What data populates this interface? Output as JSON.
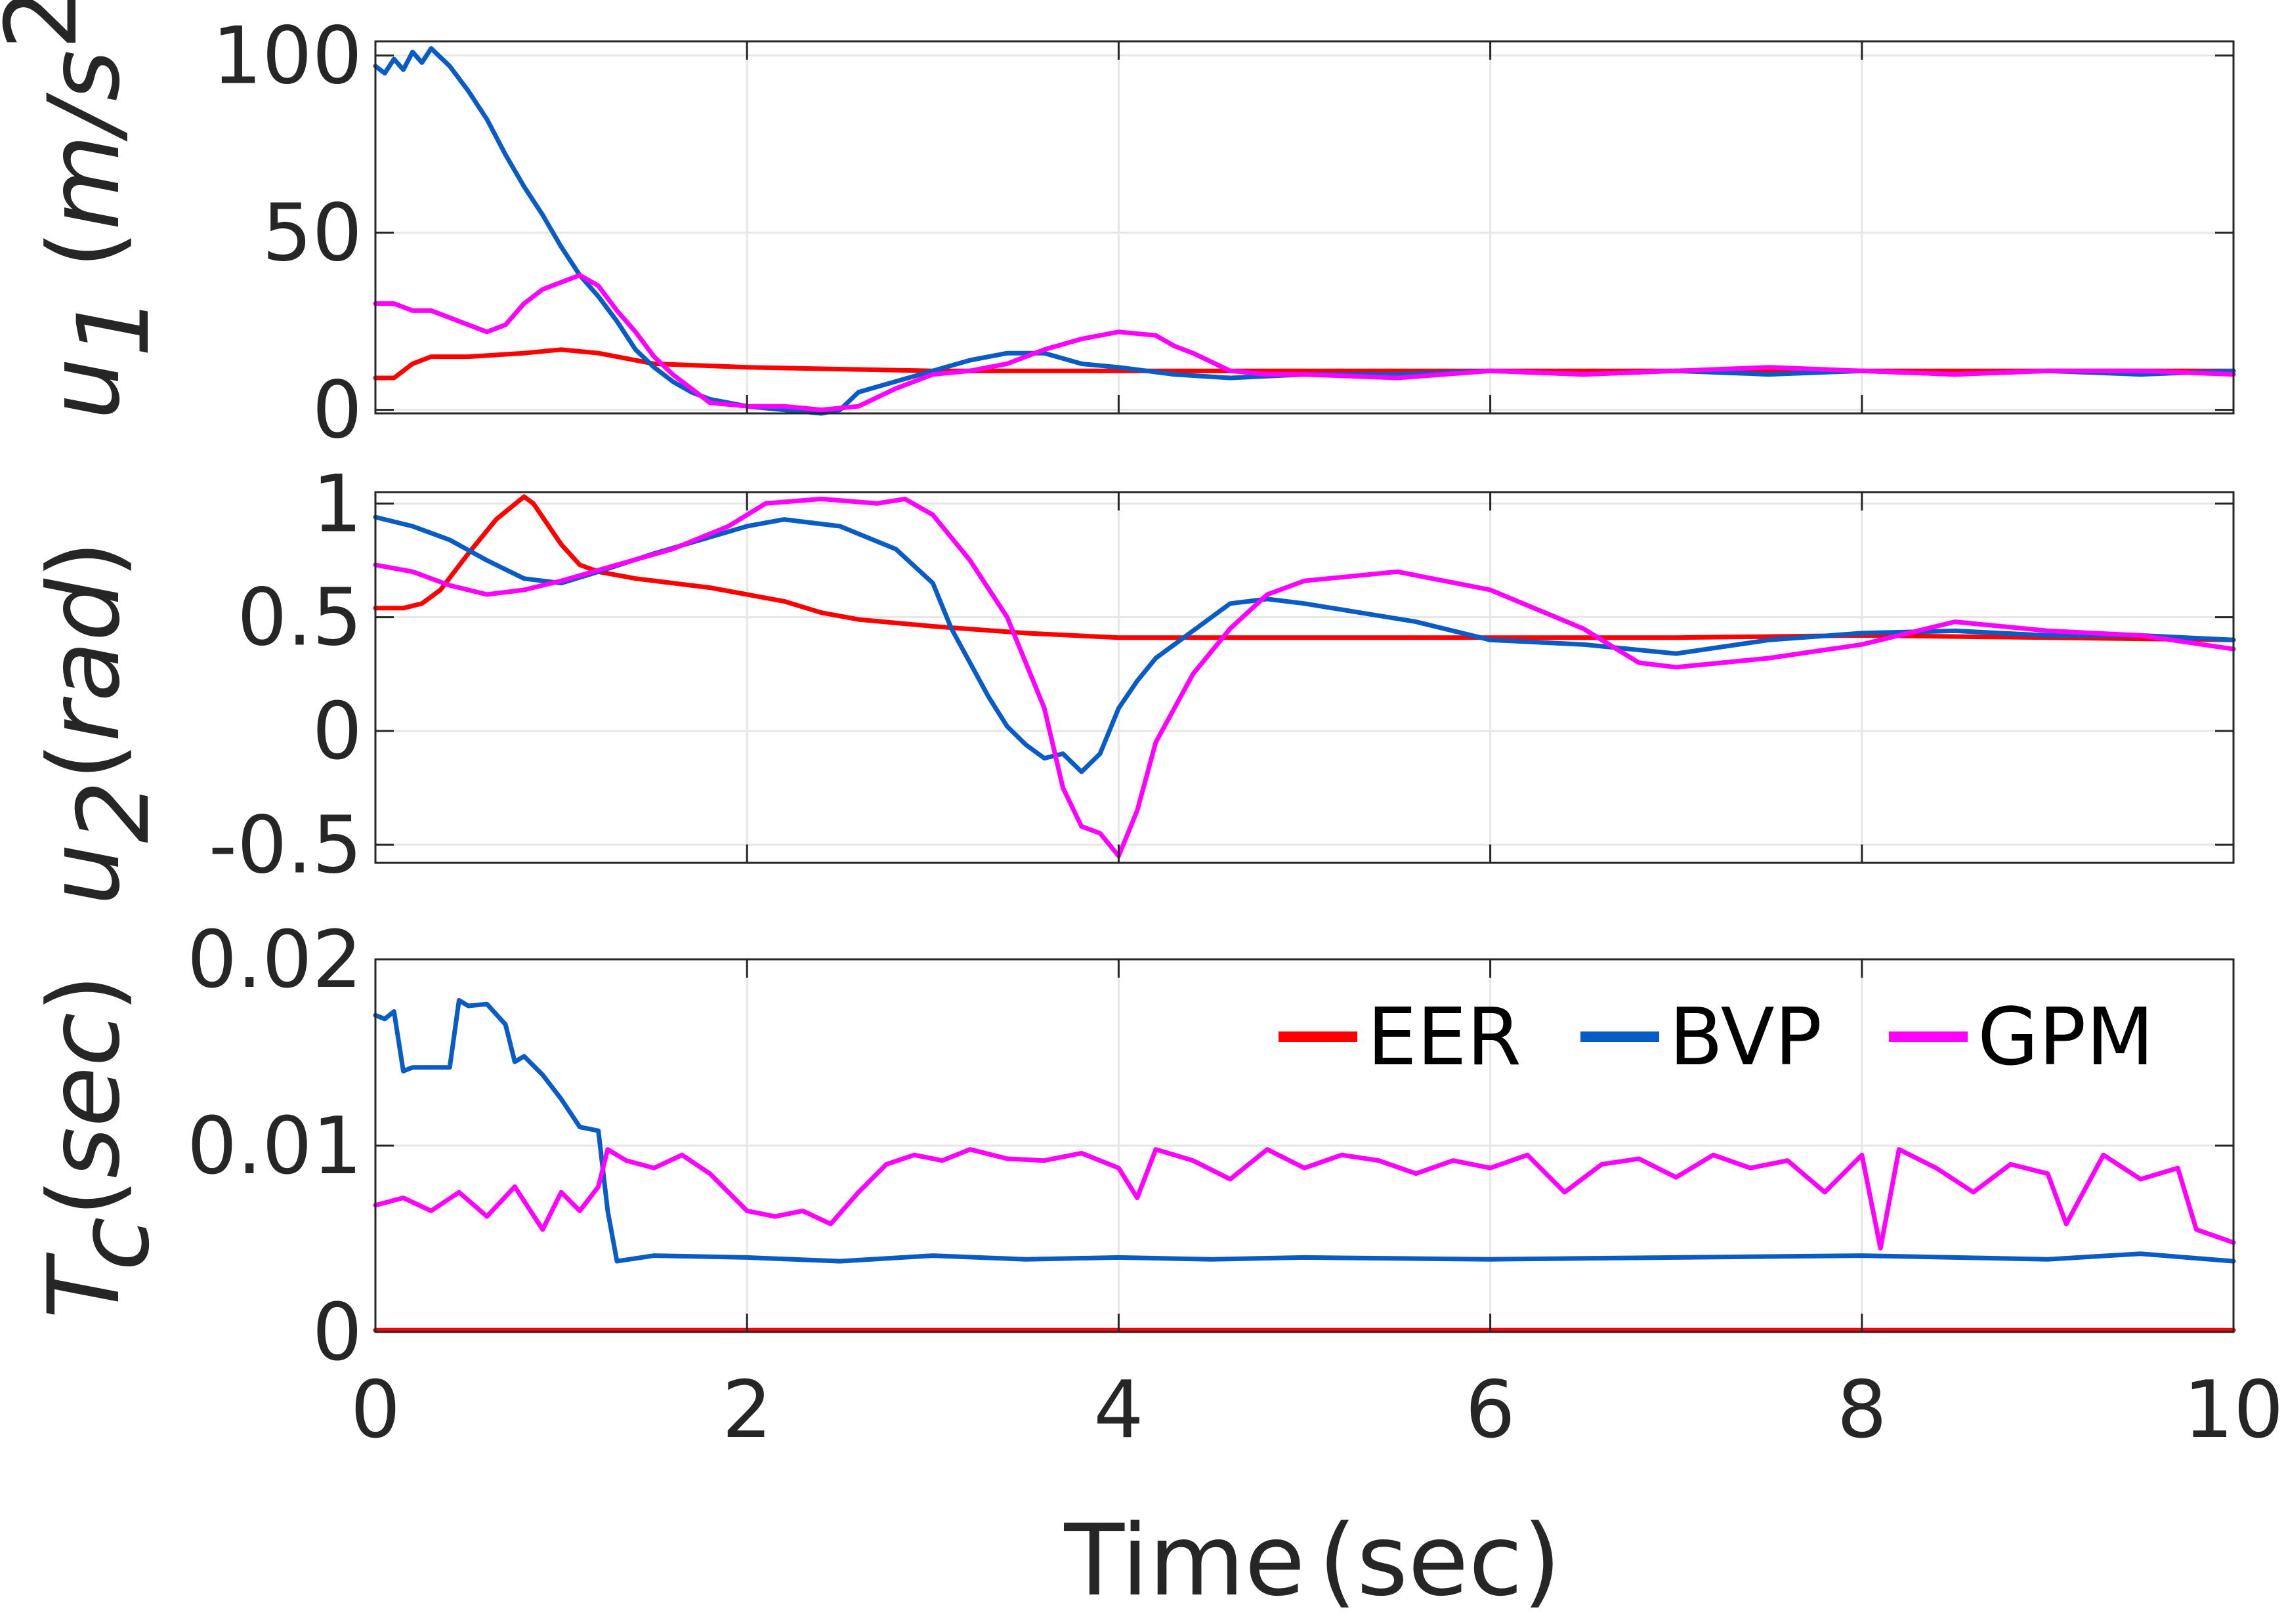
{
  "chart_data": [
    {
      "type": "line",
      "panel": "u1",
      "ylabel_parts": {
        "sym": "u",
        "sub": "1",
        "unit_open": "(",
        "unit_num": "m/s",
        "unit_sup": "2",
        "unit_close": ")"
      },
      "xlim": [
        0,
        10
      ],
      "ylim": [
        -1,
        104
      ],
      "yticks": [
        0,
        50,
        100
      ],
      "ytick_labels": [
        "0",
        "50",
        "100"
      ],
      "grid": true,
      "series": [
        {
          "name": "EER",
          "color": "#ff0000",
          "x": [
            0,
            0.1,
            0.2,
            0.3,
            0.5,
            0.8,
            1.0,
            1.2,
            1.5,
            2.0,
            3.0,
            4.0,
            5.0,
            6.0,
            8.0,
            10.0
          ],
          "y": [
            9,
            9,
            13,
            15,
            15,
            16,
            17,
            16,
            13,
            12,
            11,
            11,
            11,
            11,
            11,
            11
          ]
        },
        {
          "name": "BVP",
          "color": "#0a5cc5",
          "x": [
            0,
            0.05,
            0.1,
            0.15,
            0.2,
            0.25,
            0.3,
            0.4,
            0.5,
            0.6,
            0.7,
            0.8,
            0.9,
            1.0,
            1.1,
            1.2,
            1.3,
            1.4,
            1.5,
            1.6,
            1.7,
            1.8,
            2.0,
            2.2,
            2.4,
            2.5,
            2.6,
            2.8,
            3.0,
            3.2,
            3.4,
            3.6,
            3.8,
            4.0,
            4.3,
            4.6,
            5.0,
            5.5,
            6.0,
            6.5,
            7.0,
            7.5,
            8.0,
            8.5,
            9.0,
            9.5,
            10.0
          ],
          "y": [
            97,
            95,
            99,
            96,
            101,
            98,
            102,
            97,
            90,
            82,
            72,
            63,
            55,
            46,
            38,
            32,
            25,
            17,
            12,
            8,
            5,
            3,
            1,
            0,
            -1,
            0,
            5,
            8,
            11,
            14,
            16,
            16,
            13,
            12,
            10,
            9,
            10,
            10,
            11,
            10,
            11,
            10,
            11,
            10,
            11,
            10,
            11
          ]
        },
        {
          "name": "GPM",
          "color": "#ff00ff",
          "x": [
            0,
            0.1,
            0.2,
            0.3,
            0.4,
            0.5,
            0.6,
            0.7,
            0.8,
            0.9,
            1.0,
            1.1,
            1.2,
            1.3,
            1.4,
            1.5,
            1.6,
            1.7,
            1.8,
            2.0,
            2.2,
            2.4,
            2.6,
            2.8,
            3.0,
            3.2,
            3.4,
            3.6,
            3.8,
            4.0,
            4.2,
            4.3,
            4.4,
            4.6,
            4.8,
            5.0,
            5.5,
            6.0,
            6.5,
            7.0,
            7.5,
            8.0,
            8.5,
            9.0,
            9.5,
            10.0
          ],
          "y": [
            30,
            30,
            28,
            28,
            26,
            24,
            22,
            24,
            30,
            34,
            36,
            38,
            35,
            28,
            22,
            15,
            10,
            6,
            2,
            1,
            1,
            0,
            1,
            6,
            10,
            11,
            13,
            17,
            20,
            22,
            21,
            18,
            16,
            11,
            10,
            10,
            9,
            11,
            10,
            11,
            12,
            11,
            10,
            11,
            11,
            10
          ]
        }
      ]
    },
    {
      "type": "line",
      "panel": "u2",
      "ylabel_parts": {
        "sym": "u",
        "sub": "2",
        "unit_open": "(",
        "unit_num": "rad",
        "unit_close": ")"
      },
      "xlim": [
        0,
        10
      ],
      "ylim": [
        -0.58,
        1.05
      ],
      "yticks": [
        -0.5,
        0,
        0.5,
        1
      ],
      "ytick_labels": [
        "-0.5",
        "0",
        "0.5",
        "1"
      ],
      "grid": true,
      "series": [
        {
          "name": "EER",
          "color": "#ff0000",
          "x": [
            0,
            0.15,
            0.25,
            0.35,
            0.5,
            0.65,
            0.8,
            0.85,
            0.9,
            1.0,
            1.1,
            1.2,
            1.4,
            1.6,
            1.8,
            2.0,
            2.2,
            2.4,
            2.6,
            3.0,
            3.5,
            4.0,
            5.0,
            6.0,
            7.0,
            8.0,
            9.0,
            10.0
          ],
          "y": [
            0.54,
            0.54,
            0.56,
            0.62,
            0.78,
            0.93,
            1.03,
            1.0,
            0.94,
            0.82,
            0.73,
            0.7,
            0.67,
            0.65,
            0.63,
            0.6,
            0.57,
            0.52,
            0.49,
            0.46,
            0.43,
            0.41,
            0.41,
            0.41,
            0.41,
            0.42,
            0.41,
            0.4
          ]
        },
        {
          "name": "BVP",
          "color": "#0a5cc5",
          "x": [
            0,
            0.2,
            0.4,
            0.6,
            0.8,
            1.0,
            1.2,
            1.5,
            2.0,
            2.2,
            2.5,
            2.8,
            3.0,
            3.1,
            3.2,
            3.3,
            3.4,
            3.5,
            3.6,
            3.7,
            3.8,
            3.9,
            4.0,
            4.1,
            4.2,
            4.4,
            4.6,
            4.8,
            5.0,
            5.3,
            5.6,
            6.0,
            6.5,
            7.0,
            7.5,
            8.0,
            8.5,
            9.0,
            9.5,
            10.0
          ],
          "y": [
            0.94,
            0.9,
            0.84,
            0.75,
            0.67,
            0.65,
            0.7,
            0.78,
            0.9,
            0.93,
            0.9,
            0.8,
            0.65,
            0.45,
            0.3,
            0.15,
            0.02,
            -0.06,
            -0.12,
            -0.1,
            -0.18,
            -0.1,
            0.1,
            0.22,
            0.32,
            0.44,
            0.56,
            0.58,
            0.56,
            0.52,
            0.48,
            0.4,
            0.38,
            0.34,
            0.4,
            0.43,
            0.44,
            0.42,
            0.42,
            0.4
          ]
        },
        {
          "name": "GPM",
          "color": "#ff00ff",
          "x": [
            0,
            0.2,
            0.4,
            0.6,
            0.8,
            1.0,
            1.3,
            1.6,
            1.9,
            2.1,
            2.4,
            2.7,
            2.85,
            3.0,
            3.2,
            3.4,
            3.6,
            3.7,
            3.8,
            3.9,
            4.0,
            4.1,
            4.2,
            4.4,
            4.6,
            4.8,
            5.0,
            5.5,
            6.0,
            6.5,
            6.8,
            7.0,
            7.5,
            8.0,
            8.5,
            9.0,
            9.5,
            10.0
          ],
          "y": [
            0.73,
            0.7,
            0.64,
            0.6,
            0.62,
            0.66,
            0.73,
            0.8,
            0.9,
            1.0,
            1.02,
            1.0,
            1.02,
            0.95,
            0.75,
            0.5,
            0.1,
            -0.25,
            -0.42,
            -0.45,
            -0.55,
            -0.35,
            -0.05,
            0.25,
            0.45,
            0.6,
            0.66,
            0.7,
            0.62,
            0.45,
            0.3,
            0.28,
            0.32,
            0.38,
            0.48,
            0.44,
            0.42,
            0.36
          ]
        }
      ]
    },
    {
      "type": "line",
      "panel": "Tc",
      "ylabel_parts": {
        "sym": "T",
        "sub": "c",
        "unit_open": "(",
        "unit_num": "sec",
        "unit_close": ")"
      },
      "xlim": [
        0,
        10
      ],
      "ylim": [
        0,
        0.02
      ],
      "yticks": [
        0,
        0.01,
        0.02
      ],
      "ytick_labels": [
        "0",
        "0.01",
        "0.02"
      ],
      "xticks": [
        0,
        2,
        4,
        6,
        8,
        10
      ],
      "xtick_labels": [
        "0",
        "2",
        "4",
        "6",
        "8",
        "10"
      ],
      "xlabel_parts": {
        "main": "Time",
        "unit": "(sec)"
      },
      "grid": true,
      "legend": {
        "placement": "top-right",
        "entries": [
          "EER",
          "BVP",
          "GPM"
        ]
      },
      "series": [
        {
          "name": "EER",
          "color": "#ff0000",
          "x": [
            0,
            2,
            4,
            6,
            8,
            10
          ],
          "y": [
            0.0001,
            0.0001,
            0.0001,
            0.0001,
            0.0001,
            0.0001
          ]
        },
        {
          "name": "BVP",
          "color": "#0a5cc5",
          "x": [
            0,
            0.05,
            0.1,
            0.15,
            0.2,
            0.4,
            0.45,
            0.5,
            0.6,
            0.7,
            0.75,
            0.8,
            0.9,
            1.0,
            1.1,
            1.2,
            1.25,
            1.3,
            1.5,
            2.0,
            2.5,
            3.0,
            3.5,
            4.0,
            4.5,
            5.0,
            6.0,
            7.0,
            8.0,
            9.0,
            9.5,
            10.0
          ],
          "y": [
            0.017,
            0.0168,
            0.0172,
            0.014,
            0.0142,
            0.0142,
            0.0178,
            0.0175,
            0.0176,
            0.0165,
            0.0145,
            0.0148,
            0.0138,
            0.0125,
            0.011,
            0.0108,
            0.0065,
            0.0038,
            0.0041,
            0.004,
            0.0038,
            0.0041,
            0.0039,
            0.004,
            0.0039,
            0.004,
            0.0039,
            0.004,
            0.0041,
            0.0039,
            0.0042,
            0.0038
          ]
        },
        {
          "name": "GPM",
          "color": "#ff00ff",
          "x": [
            0,
            0.15,
            0.3,
            0.45,
            0.6,
            0.75,
            0.9,
            1.0,
            1.1,
            1.2,
            1.25,
            1.35,
            1.5,
            1.65,
            1.8,
            1.9,
            2.0,
            2.15,
            2.3,
            2.45,
            2.6,
            2.75,
            2.9,
            3.05,
            3.2,
            3.4,
            3.6,
            3.8,
            4.0,
            4.1,
            4.2,
            4.4,
            4.6,
            4.8,
            5.0,
            5.2,
            5.4,
            5.6,
            5.8,
            6.0,
            6.2,
            6.4,
            6.6,
            6.8,
            7.0,
            7.2,
            7.4,
            7.6,
            7.8,
            8.0,
            8.1,
            8.2,
            8.4,
            8.6,
            8.8,
            9.0,
            9.1,
            9.3,
            9.5,
            9.7,
            9.8,
            10.0
          ],
          "y": [
            0.0068,
            0.0072,
            0.0065,
            0.0075,
            0.0062,
            0.0078,
            0.0055,
            0.0075,
            0.0065,
            0.0078,
            0.0098,
            0.0092,
            0.0088,
            0.0095,
            0.0085,
            0.0075,
            0.0065,
            0.0062,
            0.0065,
            0.0058,
            0.0075,
            0.009,
            0.0095,
            0.0092,
            0.0098,
            0.0093,
            0.0092,
            0.0096,
            0.0088,
            0.0072,
            0.0098,
            0.0092,
            0.0082,
            0.0098,
            0.0088,
            0.0095,
            0.0092,
            0.0085,
            0.0092,
            0.0088,
            0.0095,
            0.0075,
            0.009,
            0.0093,
            0.0083,
            0.0095,
            0.0088,
            0.0092,
            0.0075,
            0.0095,
            0.0045,
            0.0098,
            0.0088,
            0.0075,
            0.009,
            0.0085,
            0.0058,
            0.0095,
            0.0082,
            0.0088,
            0.0055,
            0.0048
          ]
        }
      ]
    }
  ]
}
